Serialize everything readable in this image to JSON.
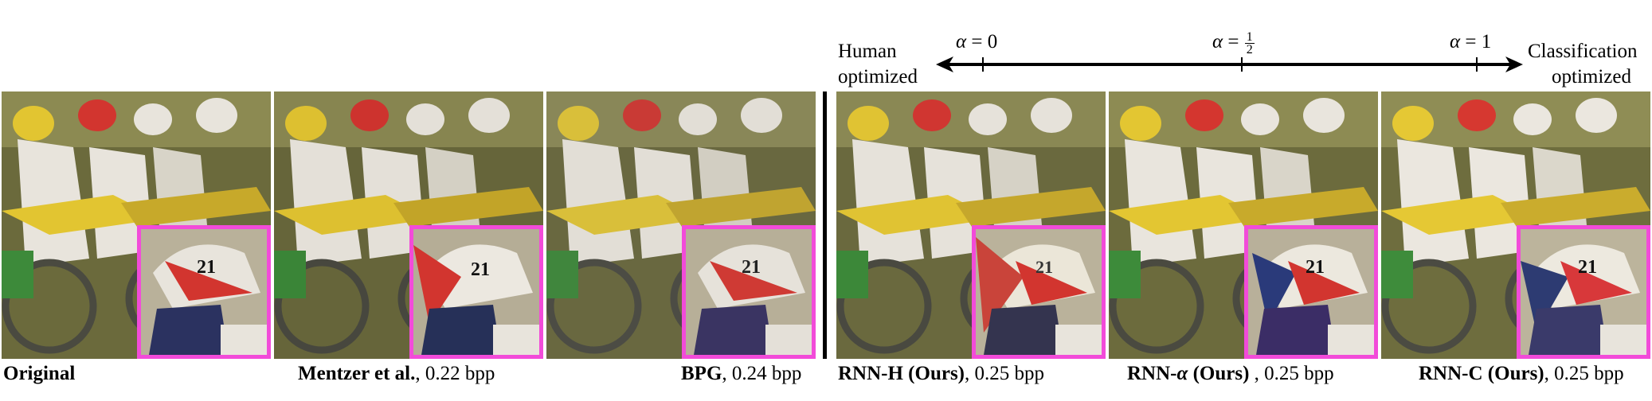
{
  "scale": {
    "left_label_line1": "Human",
    "left_label_line2": "optimized",
    "right_label_line1": "Classification",
    "right_label_line2": "optimized",
    "ticks": [
      {
        "symbol": "α",
        "relation": " = ",
        "value": "0"
      },
      {
        "symbol": "α",
        "relation": " = ",
        "value_num": "1",
        "value_den": "2"
      },
      {
        "symbol": "α",
        "relation": " = ",
        "value": "1"
      }
    ]
  },
  "panels": [
    {
      "name": "original",
      "method": "Original",
      "rate": ""
    },
    {
      "name": "mentzer",
      "method": "Mentzer et al.",
      "rate": ", 0.22 bpp"
    },
    {
      "name": "bpg",
      "method": "BPG",
      "rate": ", 0.24 bpp"
    },
    {
      "name": "rnn-h",
      "method": "RNN-H (Ours)",
      "rate": ", 0.25 bpp"
    },
    {
      "name": "rnn-alpha",
      "method_prefix": "RNN-",
      "method_symbol": "α",
      "method_suffix": " (Ours)",
      "rate": " , 0.25 bpp"
    },
    {
      "name": "rnn-c",
      "method": "RNN-C (Ours)",
      "rate": ", 0.25 bpp"
    }
  ],
  "colors": {
    "inset_border": "#f24bd9",
    "helmet_red": "#d2352f",
    "rider_white": "#e8e4dc",
    "fender_yellow": "#e2c531",
    "background_grass": "#6b6a3c"
  }
}
